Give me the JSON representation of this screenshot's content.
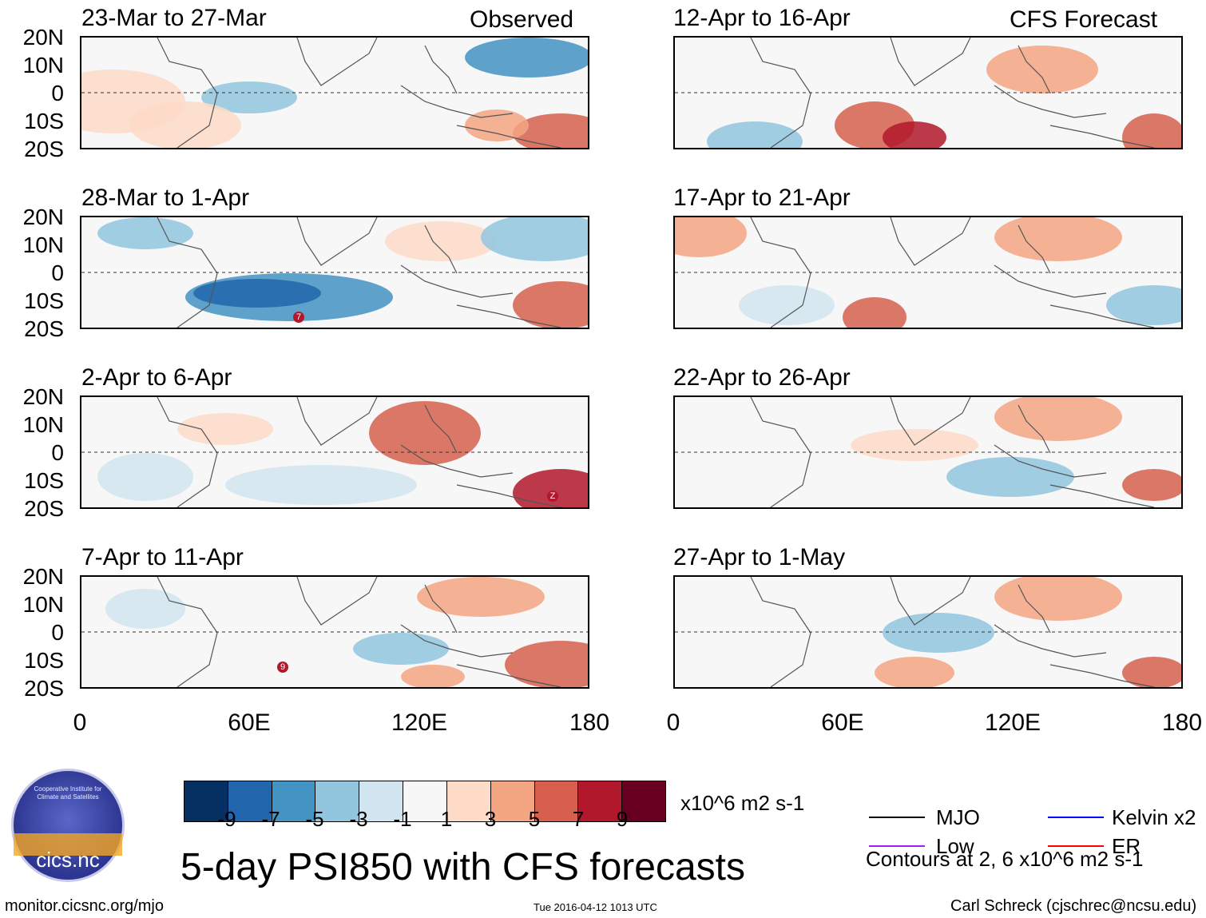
{
  "header": {
    "left_label": "Observed",
    "right_label": "CFS Forecast"
  },
  "left_panels": [
    {
      "title": "23-Mar to 27-Mar"
    },
    {
      "title": "28-Mar to 1-Apr"
    },
    {
      "title": "2-Apr to 6-Apr"
    },
    {
      "title": "7-Apr to 11-Apr"
    }
  ],
  "right_panels": [
    {
      "title": "12-Apr to 16-Apr"
    },
    {
      "title": "17-Apr to 21-Apr"
    },
    {
      "title": "22-Apr to 26-Apr"
    },
    {
      "title": "27-Apr to 1-May"
    }
  ],
  "y_ticks": [
    "20N",
    "10N",
    "0",
    "10S",
    "20S"
  ],
  "x_ticks": [
    "0",
    "60E",
    "120E",
    "180"
  ],
  "colorbar": {
    "colors": [
      "#053061",
      "#2166ac",
      "#4393c3",
      "#92c5de",
      "#d1e5f0",
      "#f7f7f7",
      "#fddbc7",
      "#f4a582",
      "#d6604d",
      "#b2182b",
      "#67001f"
    ],
    "ticks": [
      "-9",
      "-7",
      "-5",
      "-3",
      "-1",
      "1",
      "3",
      "5",
      "7",
      "9"
    ],
    "units": "x10^6 m2 s-1"
  },
  "legend": {
    "items": [
      {
        "label": "MJO",
        "color": "#000000"
      },
      {
        "label": "Kelvin x2",
        "color": "#0000ff"
      },
      {
        "label": "Low",
        "color": "#a020f0"
      },
      {
        "label": "ER",
        "color": "#ff0000"
      }
    ],
    "note": "Contours at 2, 6 x10^6 m2 s-1"
  },
  "logo": {
    "text": "cics.nc",
    "ring_text": "Cooperative Institute for Climate and Satellites"
  },
  "title": "5-day PSI850 with CFS forecasts",
  "footer": {
    "url": "monitor.cicsnc.org/mjo",
    "timestamp": "Tue 2016-04-12 1013 UTC",
    "author": "Carl Schreck (cjschrec@ncsu.edu)"
  },
  "markers": {
    "left_panel_2": "7",
    "left_panel_3": "Z",
    "left_panel_4": "9"
  }
}
